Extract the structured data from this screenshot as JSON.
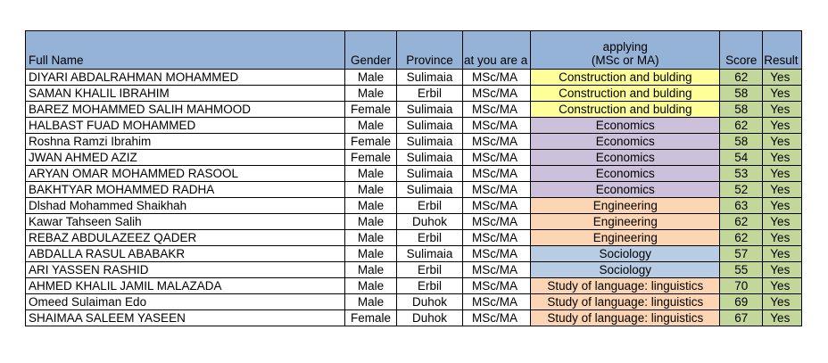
{
  "headers": {
    "full_name": "Full Name",
    "gender": "Gender",
    "province": "Province",
    "level": "at you are a",
    "field_line1": "applying",
    "field_line2": "(MSc or MA)",
    "score": "Score",
    "result": "Result"
  },
  "field_colors": {
    "construction": "#ffff99",
    "economics": "#ccc0da",
    "engineering": "#fcd5b4",
    "sociology": "#b8cce4",
    "language": "#fcd5b4",
    "header": "#95b3d7",
    "score_result": "#c4d79b"
  },
  "rows": [
    {
      "name": "DIYARI ABDALRAHMAN MOHAMMED",
      "gender": "Male",
      "province": "Sulimaia",
      "level": "MSc/MA",
      "field": "Construction and bulding",
      "field_group": "construction",
      "score": "62",
      "result": "Yes"
    },
    {
      "name": "SAMAN KHALIL IBRAHIM",
      "gender": "Male",
      "province": "Erbil",
      "level": "MSc/MA",
      "field": "Construction and bulding",
      "field_group": "construction",
      "score": "58",
      "result": "Yes"
    },
    {
      "name": "BAREZ MOHAMMED SALIH MAHMOOD",
      "gender": "Female",
      "province": "Sulimaia",
      "level": "MSc/MA",
      "field": "Construction and bulding",
      "field_group": "construction",
      "score": "58",
      "result": "Yes"
    },
    {
      "name": "HALBAST FUAD MOHAMMED",
      "gender": "Male",
      "province": "Sulimaia",
      "level": "MSc/MA",
      "field": "Economics",
      "field_group": "economics",
      "score": "62",
      "result": "Yes"
    },
    {
      "name": "Roshna Ramzi Ibrahim",
      "gender": "Female",
      "province": "Sulimaia",
      "level": "MSc/MA",
      "field": "Economics",
      "field_group": "economics",
      "score": "58",
      "result": "Yes"
    },
    {
      "name": "JWAN AHMED AZIZ",
      "gender": "Female",
      "province": "Sulimaia",
      "level": "MSc/MA",
      "field": "Economics",
      "field_group": "economics",
      "score": "54",
      "result": "Yes"
    },
    {
      "name": "ARYAN OMAR MOHAMMED RASOOL",
      "gender": "Male",
      "province": "Sulimaia",
      "level": "MSc/MA",
      "field": "Economics",
      "field_group": "economics",
      "score": "53",
      "result": "Yes"
    },
    {
      "name": "BAKHTYAR MOHAMMED RADHA",
      "gender": "Male",
      "province": "Sulimaia",
      "level": "MSc/MA",
      "field": "Economics",
      "field_group": "economics",
      "score": "52",
      "result": "Yes"
    },
    {
      "name": "Dlshad Mohammed Shaikhah",
      "gender": "Male",
      "province": "Erbil",
      "level": "MSc/MA",
      "field": "Engineering",
      "field_group": "engineering",
      "score": "63",
      "result": "Yes"
    },
    {
      "name": "Kawar Tahseen Salih",
      "gender": "Male",
      "province": "Duhok",
      "level": "MSc/MA",
      "field": "Engineering",
      "field_group": "engineering",
      "score": "62",
      "result": "Yes"
    },
    {
      "name": "REBAZ ABDULAZEEZ QADER",
      "gender": "Male",
      "province": "Erbil",
      "level": "MSc/MA",
      "field": "Engineering",
      "field_group": "engineering",
      "score": "62",
      "result": "Yes"
    },
    {
      "name": "ABDALLA RASUL ABABAKR",
      "gender": "Male",
      "province": "Sulimaia",
      "level": "MSc/MA",
      "field": "Sociology",
      "field_group": "sociology",
      "score": "57",
      "result": "Yes"
    },
    {
      "name": "ARI YASSEN RASHID",
      "gender": "Male",
      "province": "Erbil",
      "level": "MSc/MA",
      "field": "Sociology",
      "field_group": "sociology",
      "score": "55",
      "result": "Yes"
    },
    {
      "name": "AHMED KHALIL JAMIL MALAZADA",
      "gender": "Male",
      "province": "Erbil",
      "level": "MSc/MA",
      "field": "Study of language: linguistics",
      "field_group": "language",
      "score": "70",
      "result": "Yes"
    },
    {
      "name": "Omeed Sulaiman Edo",
      "gender": "Male",
      "province": "Duhok",
      "level": "MSc/MA",
      "field": "Study of language: linguistics",
      "field_group": "language",
      "score": "69",
      "result": "Yes"
    },
    {
      "name": "SHAIMAA SALEEM YASEEN",
      "gender": "Female",
      "province": "Duhok",
      "level": "MSc/MA",
      "field": "Study of language: linguistics",
      "field_group": "language",
      "score": "67",
      "result": "Yes"
    }
  ]
}
